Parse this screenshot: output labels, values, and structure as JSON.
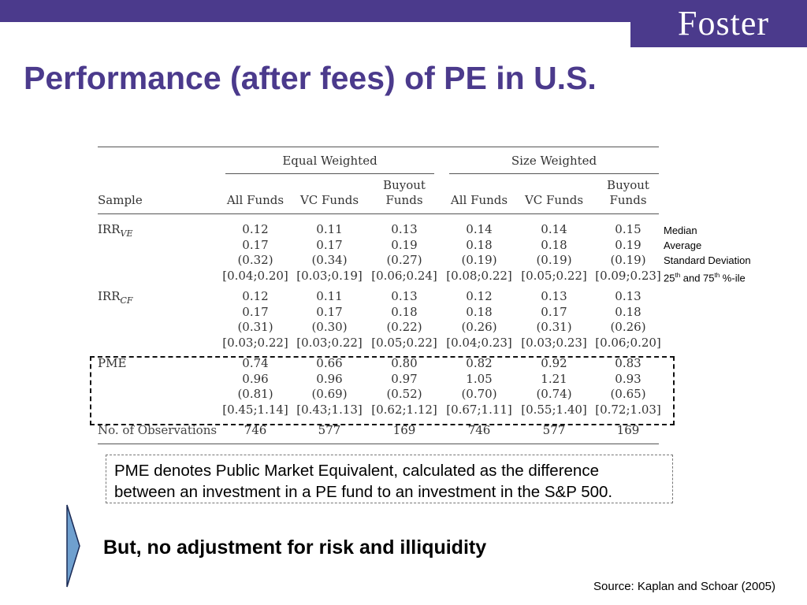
{
  "header": {
    "logo_text": "Foster",
    "brand_color": "#4b3a8c"
  },
  "title": "Performance (after fees) of PE in U.S.",
  "table": {
    "group_headers": [
      "Equal Weighted",
      "Size Weighted"
    ],
    "sample_label": "Sample",
    "columns": [
      [
        "All Funds"
      ],
      [
        "VC Funds"
      ],
      [
        "Buyout",
        "Funds"
      ],
      [
        "All Funds"
      ],
      [
        "VC Funds"
      ],
      [
        "Buyout",
        "Funds"
      ]
    ],
    "rows": [
      {
        "label": "IRR",
        "sub": "VE",
        "values": [
          [
            "0.12",
            "0.17",
            "(0.32)",
            "[0.04;0.20]"
          ],
          [
            "0.11",
            "0.17",
            "(0.34)",
            "[0.03;0.19]"
          ],
          [
            "0.13",
            "0.19",
            "(0.27)",
            "[0.06;0.24]"
          ],
          [
            "0.14",
            "0.18",
            "(0.19)",
            "[0.08;0.22]"
          ],
          [
            "0.14",
            "0.18",
            "(0.19)",
            "[0.05;0.22]"
          ],
          [
            "0.15",
            "0.19",
            "(0.19)",
            "[0.09;0.23]"
          ]
        ]
      },
      {
        "label": "IRR",
        "sub": "CF",
        "values": [
          [
            "0.12",
            "0.17",
            "(0.31)",
            "[0.03;0.22]"
          ],
          [
            "0.11",
            "0.17",
            "(0.30)",
            "[0.03;0.22]"
          ],
          [
            "0.13",
            "0.18",
            "(0.22)",
            "[0.05;0.22]"
          ],
          [
            "0.12",
            "0.18",
            "(0.26)",
            "[0.04;0.23]"
          ],
          [
            "0.13",
            "0.17",
            "(0.31)",
            "[0.03;0.23]"
          ],
          [
            "0.13",
            "0.18",
            "(0.26)",
            "[0.06;0.20]"
          ]
        ]
      },
      {
        "label": "PME",
        "sub": "",
        "values": [
          [
            "0.74",
            "0.96",
            "(0.81)",
            "[0.45;1.14]"
          ],
          [
            "0.66",
            "0.96",
            "(0.69)",
            "[0.43;1.13]"
          ],
          [
            "0.80",
            "0.97",
            "(0.52)",
            "[0.62;1.12]"
          ],
          [
            "0.82",
            "1.05",
            "(0.70)",
            "[0.67;1.11]"
          ],
          [
            "0.92",
            "1.21",
            "(0.74)",
            "[0.55;1.40]"
          ],
          [
            "0.83",
            "0.93",
            "(0.65)",
            "[0.72;1.03]"
          ]
        ]
      }
    ],
    "observations": {
      "label": "No. of Observations",
      "values": [
        "746",
        "577",
        "169",
        "746",
        "577",
        "169"
      ]
    }
  },
  "legend": {
    "median": "Median",
    "average": "Average",
    "std": "Standard Deviation",
    "pct_25": "25",
    "pct_sup_25": "th",
    "pct_and": " and 75",
    "pct_sup_75": "th",
    "pct_tail": " %-ile"
  },
  "note": "PME denotes Public Market Equivalent, calculated as the difference between an investment in a PE fund to an investment in the S&P 500.",
  "bullet": "But, no adjustment for risk and illiquidity",
  "source": "Source: Kaplan and Schoar (2005)"
}
